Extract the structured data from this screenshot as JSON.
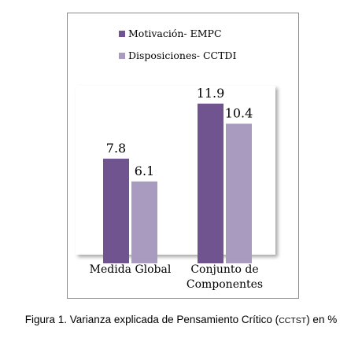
{
  "chart_data": {
    "type": "bar",
    "categories": [
      "Medida Global",
      "Conjunto de Componentes"
    ],
    "category_lines": [
      [
        "Medida Global"
      ],
      [
        "Conjunto de",
        "Componentes"
      ]
    ],
    "series": [
      {
        "name": "Motivación- EMPC",
        "color": "#70548f",
        "values": [
          7.8,
          11.9
        ],
        "labels": [
          "7.8",
          "11.9"
        ]
      },
      {
        "name": "Disposiciones- CCTDI",
        "color": "#a99bbf",
        "values": [
          6.1,
          10.4
        ],
        "labels": [
          "6.1",
          "10.4"
        ]
      }
    ],
    "ylim": [
      0,
      13
    ],
    "grid": false,
    "legend_position": "top"
  },
  "caption": {
    "prefix": "Figura 1. Varianza explicada de Pensamiento Crítico (",
    "abbr": "CCTST",
    "suffix": ") en %"
  }
}
